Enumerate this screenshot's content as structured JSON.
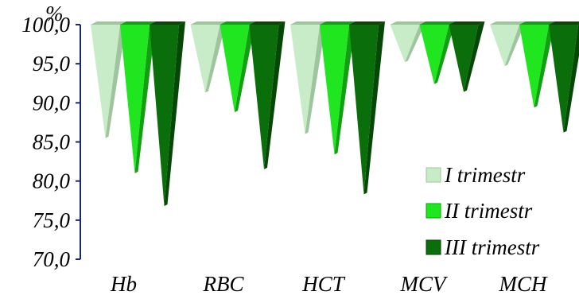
{
  "chart_data": {
    "type": "bar",
    "style": "3d-cones-hanging-from-top",
    "y_unit": "%",
    "ylim": [
      70,
      100
    ],
    "y_ticks": [
      "100,0",
      "95,0",
      "90,0",
      "85,0",
      "80,0",
      "75,0",
      "70,0"
    ],
    "categories": [
      "Hb",
      "RBC",
      "HCT",
      "MCV",
      "MCH"
    ],
    "series": [
      {
        "name": "I trimestr",
        "values": [
          85.5,
          91.3,
          86.0,
          95.2,
          94.7
        ],
        "color": "#c8ecc8",
        "shade": "#9fc59f"
      },
      {
        "name": "II trimestr",
        "values": [
          81.0,
          88.8,
          83.4,
          92.4,
          89.4
        ],
        "color": "#1fe61f",
        "shade": "#12a012"
      },
      {
        "name": "III trimestr",
        "values": [
          76.8,
          81.5,
          78.3,
          91.4,
          86.2
        ],
        "color": "#0a6e0a",
        "shade": "#054705"
      }
    ],
    "legend_position": "bottom-right",
    "grid": false
  }
}
